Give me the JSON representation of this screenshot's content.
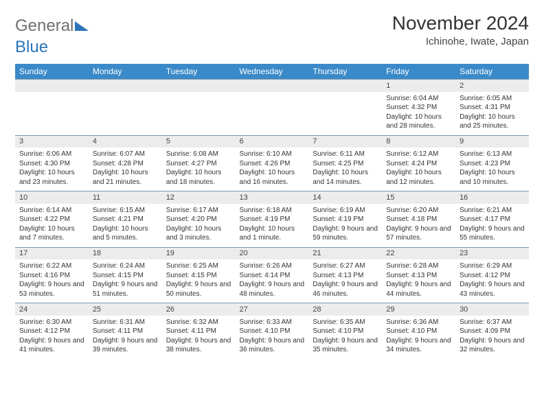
{
  "brand": {
    "part1": "General",
    "part2": "Blue"
  },
  "title": "November 2024",
  "location": "Ichinohe, Iwate, Japan",
  "colors": {
    "header_bg": "#3a8ac9",
    "header_text": "#ffffff",
    "daynum_bg": "#ececec",
    "row_border": "#7c98ad",
    "body_text": "#333333",
    "brand_gray": "#6f6f6f",
    "brand_blue": "#2a74b8",
    "background": "#ffffff"
  },
  "fonts": {
    "title_size": 28,
    "location_size": 15,
    "header_size": 12,
    "daynum_size": 11,
    "cell_size": 10
  },
  "weekdays": [
    "Sunday",
    "Monday",
    "Tuesday",
    "Wednesday",
    "Thursday",
    "Friday",
    "Saturday"
  ],
  "weeks": [
    {
      "nums": [
        "",
        "",
        "",
        "",
        "",
        "1",
        "2"
      ],
      "texts": [
        "",
        "",
        "",
        "",
        "",
        "Sunrise: 6:04 AM\nSunset: 4:32 PM\nDaylight: 10 hours and 28 minutes.",
        "Sunrise: 6:05 AM\nSunset: 4:31 PM\nDaylight: 10 hours and 25 minutes."
      ]
    },
    {
      "nums": [
        "3",
        "4",
        "5",
        "6",
        "7",
        "8",
        "9"
      ],
      "texts": [
        "Sunrise: 6:06 AM\nSunset: 4:30 PM\nDaylight: 10 hours and 23 minutes.",
        "Sunrise: 6:07 AM\nSunset: 4:28 PM\nDaylight: 10 hours and 21 minutes.",
        "Sunrise: 6:08 AM\nSunset: 4:27 PM\nDaylight: 10 hours and 18 minutes.",
        "Sunrise: 6:10 AM\nSunset: 4:26 PM\nDaylight: 10 hours and 16 minutes.",
        "Sunrise: 6:11 AM\nSunset: 4:25 PM\nDaylight: 10 hours and 14 minutes.",
        "Sunrise: 6:12 AM\nSunset: 4:24 PM\nDaylight: 10 hours and 12 minutes.",
        "Sunrise: 6:13 AM\nSunset: 4:23 PM\nDaylight: 10 hours and 10 minutes."
      ]
    },
    {
      "nums": [
        "10",
        "11",
        "12",
        "13",
        "14",
        "15",
        "16"
      ],
      "texts": [
        "Sunrise: 6:14 AM\nSunset: 4:22 PM\nDaylight: 10 hours and 7 minutes.",
        "Sunrise: 6:15 AM\nSunset: 4:21 PM\nDaylight: 10 hours and 5 minutes.",
        "Sunrise: 6:17 AM\nSunset: 4:20 PM\nDaylight: 10 hours and 3 minutes.",
        "Sunrise: 6:18 AM\nSunset: 4:19 PM\nDaylight: 10 hours and 1 minute.",
        "Sunrise: 6:19 AM\nSunset: 4:19 PM\nDaylight: 9 hours and 59 minutes.",
        "Sunrise: 6:20 AM\nSunset: 4:18 PM\nDaylight: 9 hours and 57 minutes.",
        "Sunrise: 6:21 AM\nSunset: 4:17 PM\nDaylight: 9 hours and 55 minutes."
      ]
    },
    {
      "nums": [
        "17",
        "18",
        "19",
        "20",
        "21",
        "22",
        "23"
      ],
      "texts": [
        "Sunrise: 6:22 AM\nSunset: 4:16 PM\nDaylight: 9 hours and 53 minutes.",
        "Sunrise: 6:24 AM\nSunset: 4:15 PM\nDaylight: 9 hours and 51 minutes.",
        "Sunrise: 6:25 AM\nSunset: 4:15 PM\nDaylight: 9 hours and 50 minutes.",
        "Sunrise: 6:26 AM\nSunset: 4:14 PM\nDaylight: 9 hours and 48 minutes.",
        "Sunrise: 6:27 AM\nSunset: 4:13 PM\nDaylight: 9 hours and 46 minutes.",
        "Sunrise: 6:28 AM\nSunset: 4:13 PM\nDaylight: 9 hours and 44 minutes.",
        "Sunrise: 6:29 AM\nSunset: 4:12 PM\nDaylight: 9 hours and 43 minutes."
      ]
    },
    {
      "nums": [
        "24",
        "25",
        "26",
        "27",
        "28",
        "29",
        "30"
      ],
      "texts": [
        "Sunrise: 6:30 AM\nSunset: 4:12 PM\nDaylight: 9 hours and 41 minutes.",
        "Sunrise: 6:31 AM\nSunset: 4:11 PM\nDaylight: 9 hours and 39 minutes.",
        "Sunrise: 6:32 AM\nSunset: 4:11 PM\nDaylight: 9 hours and 38 minutes.",
        "Sunrise: 6:33 AM\nSunset: 4:10 PM\nDaylight: 9 hours and 36 minutes.",
        "Sunrise: 6:35 AM\nSunset: 4:10 PM\nDaylight: 9 hours and 35 minutes.",
        "Sunrise: 6:36 AM\nSunset: 4:10 PM\nDaylight: 9 hours and 34 minutes.",
        "Sunrise: 6:37 AM\nSunset: 4:09 PM\nDaylight: 9 hours and 32 minutes."
      ]
    }
  ]
}
